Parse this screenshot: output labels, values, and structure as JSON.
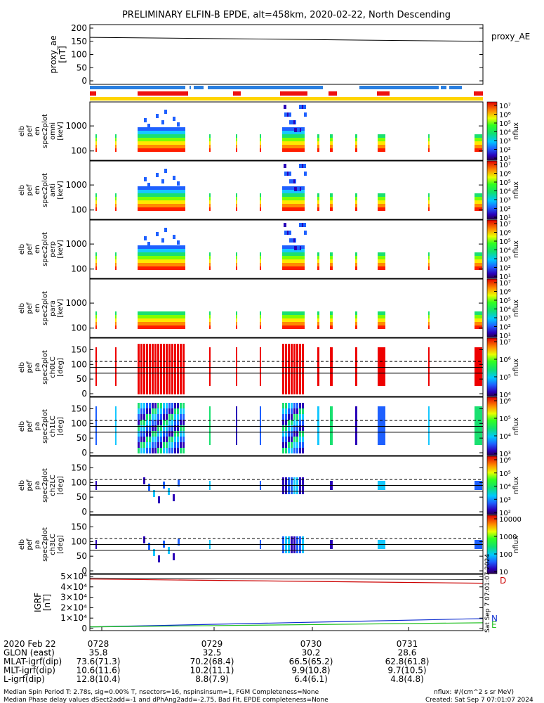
{
  "title": "PRELIMINARY ELFIN-B EPDE, alt=458km, 2020-02-22, North Descending",
  "panels": {
    "proxy": {
      "ylabel": [
        "proxy_ae",
        "[nT]"
      ],
      "yticks": [
        "200",
        "150",
        "100",
        "50",
        "0"
      ],
      "legend": "proxy_AE"
    },
    "spec_en": [
      {
        "ylabel": [
          "elb",
          "pef",
          "en",
          "spec2plot",
          "omni",
          "[keV]"
        ]
      },
      {
        "ylabel": [
          "elb",
          "pef",
          "en",
          "spec2plot",
          "anti",
          "[keV]"
        ]
      },
      {
        "ylabel": [
          "elb",
          "pef",
          "en",
          "spec2plot",
          "perp",
          "[keV]"
        ]
      },
      {
        "ylabel": [
          "elb",
          "pef",
          "en",
          "spec2plot",
          "para",
          "[keV]"
        ]
      }
    ],
    "spec_pa": [
      {
        "ylabel": [
          "elb",
          "pef",
          "pa",
          "spec2plot",
          "ch0LC",
          "[deg]"
        ]
      },
      {
        "ylabel": [
          "elb",
          "pef",
          "pa",
          "spec2plot",
          "ch1LC",
          "[deg]"
        ]
      },
      {
        "ylabel": [
          "elb",
          "pef",
          "pa",
          "spec2plot",
          "ch2LC",
          "[deg]"
        ]
      },
      {
        "ylabel": [
          "elb",
          "pef",
          "pa",
          "spec2plot",
          "ch3LC",
          "[deg]"
        ]
      }
    ],
    "en_yticks": [
      "1000",
      "100"
    ],
    "pa_yticks": [
      "150",
      "100",
      "50",
      "0"
    ],
    "igrf": {
      "ylabel": [
        "IGRF",
        "[nT]"
      ],
      "yticks": [
        "5×10⁴",
        "4×10⁴",
        "3×10⁴",
        "2×10⁴",
        "1×10⁴",
        "0"
      ],
      "legend": [
        "D",
        "N",
        "E"
      ]
    }
  },
  "colorbars": {
    "unit": "nflux",
    "bars": [
      {
        "labels": [
          "10⁷",
          "10⁶",
          "10⁵",
          "10⁴",
          "10³",
          "10²",
          "10¹"
        ]
      },
      {
        "labels": [
          "10⁷",
          "10⁶",
          "10⁵",
          "10⁴",
          "10³",
          "10²",
          "10¹"
        ]
      },
      {
        "labels": [
          "10⁷",
          "10⁶",
          "10⁵",
          "10⁴",
          "10³",
          "10²",
          "10¹"
        ]
      },
      {
        "labels": [
          "10⁷",
          "10⁶",
          "10⁵",
          "10⁴",
          "10³",
          "10²",
          "10¹"
        ]
      },
      {
        "labels": [
          "10⁷",
          "10⁶",
          "10⁵",
          "10⁴"
        ]
      },
      {
        "labels": [
          "10⁶",
          "10⁵",
          "10⁴",
          "10³"
        ]
      },
      {
        "labels": [
          "10⁶",
          "10⁵",
          "10⁴",
          "10³",
          "10²"
        ]
      },
      {
        "labels": [
          "10000",
          "1000",
          "100",
          "10"
        ]
      }
    ]
  },
  "side_stamp": "Sat Sep  7 07:01:07 2024",
  "footer": {
    "rows": [
      {
        "label": "2020 Feb 22",
        "values": [
          "0728",
          "0729",
          "0730",
          "0731"
        ]
      },
      {
        "label": "GLON (east)",
        "values": [
          "35.8",
          "32.5",
          "30.2",
          "28.6"
        ]
      },
      {
        "label": "MLAT-igrf(dip)",
        "values": [
          "73.6(71.3)",
          "70.2(68.4)",
          "66.5(65.2)",
          "62.8(61.8)"
        ]
      },
      {
        "label": "MLT-igrf(dip)",
        "values": [
          "10.6(11.6)",
          "10.2(11.1)",
          "9.9(10.8)",
          "9.7(10.5)"
        ]
      },
      {
        "label": "L-igrf(dip)",
        "values": [
          "12.8(10.4)",
          "8.8(7.9)",
          "6.4(6.1)",
          "4.8(4.8)"
        ]
      }
    ],
    "note1": "Median Spin Period T: 2.78s, sig=0.00% T, nsectors=16, nspinsinsum=1, FGM Completeness=None",
    "note2": "Median Phase delay values dSect2add=-1 and dPhAng2add=-2.75, Bad Fit, EPDE completeness=None",
    "units": "nflux: #/(cm^2 s sr MeV)",
    "created": "Created: Sat Sep  7 07:01:07 2024"
  },
  "chart_data": [
    {
      "type": "line",
      "title": "PRELIMINARY ELFIN-B EPDE, alt=458km, 2020-02-22, North Descending",
      "ylabel": "proxy_ae [nT]",
      "ylim": [
        0,
        200
      ],
      "series": [
        {
          "name": "proxy_AE",
          "x": [
            "0727.6",
            "0732"
          ],
          "values": [
            165,
            150
          ]
        }
      ]
    },
    {
      "type": "heatmap",
      "ylabel": "elb pef en spec2plot omni [keV]",
      "yscale": "log",
      "ylim": [
        55,
        7000
      ],
      "colorscale": "nflux 10^1-10^7"
    },
    {
      "type": "heatmap",
      "ylabel": "elb pef en spec2plot anti [keV]",
      "yscale": "log",
      "ylim": [
        55,
        7000
      ]
    },
    {
      "type": "heatmap",
      "ylabel": "elb pef en spec2plot perp [keV]",
      "yscale": "log",
      "ylim": [
        55,
        7000
      ]
    },
    {
      "type": "heatmap",
      "ylabel": "elb pef en spec2plot para [keV]",
      "yscale": "log",
      "ylim": [
        55,
        7000
      ]
    },
    {
      "type": "heatmap",
      "ylabel": "elb pef pa spec2plot ch0LC [deg]",
      "ylim": [
        0,
        180
      ],
      "colorscale": "nflux 10^4-10^7"
    },
    {
      "type": "heatmap",
      "ylabel": "elb pef pa spec2plot ch1LC [deg]",
      "ylim": [
        0,
        180
      ],
      "colorscale": "nflux 10^3-10^6"
    },
    {
      "type": "heatmap",
      "ylabel": "elb pef pa spec2plot ch2LC [deg]",
      "ylim": [
        0,
        180
      ],
      "colorscale": "nflux 10^2-10^6"
    },
    {
      "type": "heatmap",
      "ylabel": "elb pef pa spec2plot ch3LC [deg]",
      "ylim": [
        0,
        180
      ],
      "colorscale": "nflux 10-10000"
    },
    {
      "type": "line",
      "ylabel": "IGRF [nT]",
      "ylim": [
        0,
        50000
      ],
      "series": [
        {
          "name": "D",
          "values": [
            47500,
            43500
          ]
        },
        {
          "name": "N",
          "values": [
            1500,
            9500
          ]
        },
        {
          "name": "E",
          "values": [
            1500,
            5500
          ]
        }
      ]
    }
  ]
}
